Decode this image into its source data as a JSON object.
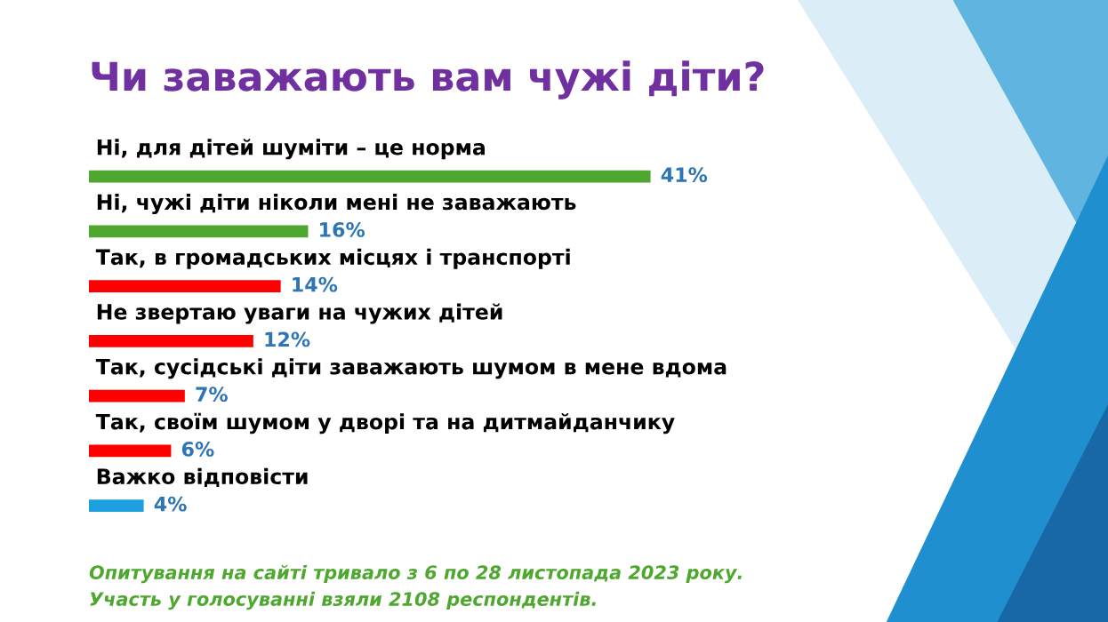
{
  "chart_data": {
    "type": "bar",
    "orientation": "horizontal",
    "title": "Чи заважають вам чужі діти?",
    "categories": [
      "Ні, для дітей шуміти – це норма",
      "Ні, чужі діти ніколи мені не заважають",
      "Так, в громадських місцях і транспорті",
      "Не звертаю уваги на чужих дітей",
      "Так, сусідські діти заважають шумом в мене вдома",
      "Так, своїм шумом у дворі та на дитмайданчику",
      "Важко відповісти"
    ],
    "values": [
      41,
      16,
      14,
      12,
      7,
      6,
      4
    ],
    "colors": [
      "#4ea72e",
      "#4ea72e",
      "#ff0000",
      "#ff0000",
      "#ff0000",
      "#ff0000",
      "#1ea0e0"
    ],
    "value_labels": [
      "41%",
      "16%",
      "14%",
      "12%",
      "7%",
      "6%",
      "4%"
    ],
    "annotations": [
      "Опитування на сайті тривало з 6 по 28 листопада 2023 року.",
      "Участь у голосуванні взяли 2108 респондентів."
    ],
    "legend": false
  }
}
